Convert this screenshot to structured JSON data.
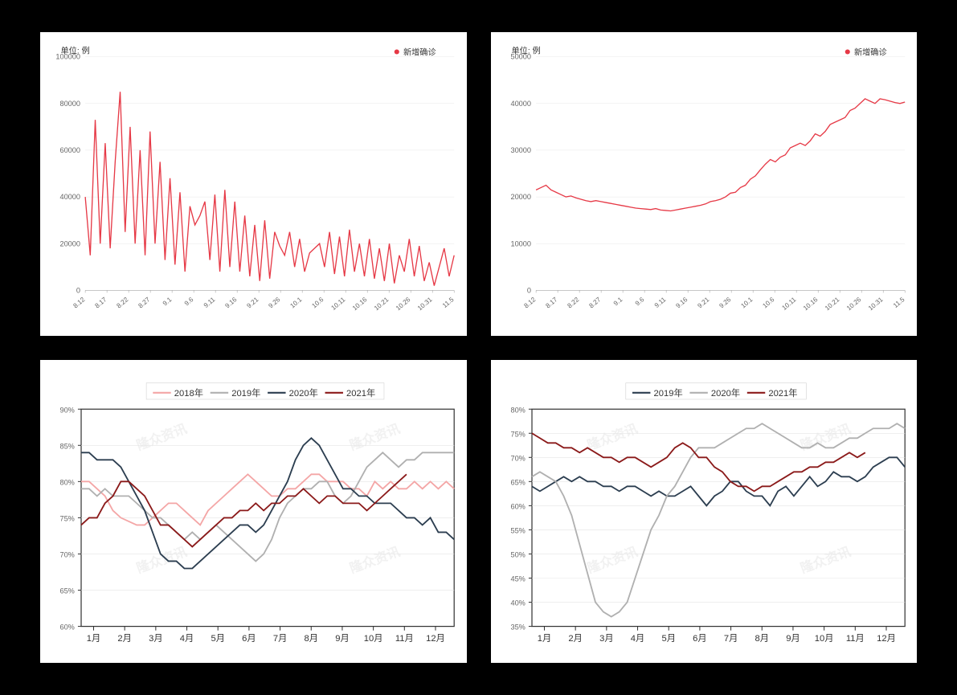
{
  "chart1": {
    "type": "line",
    "unit_label": "单位: 例",
    "legend": "新增确诊",
    "line_color": "#e63946",
    "background_color": "#ffffff",
    "grid_color": "#e8e8e8",
    "ylim": [
      0,
      100000
    ],
    "ytick_step": 20000,
    "x_labels": [
      "8.12",
      "8.17",
      "8.22",
      "8.27",
      "9.1",
      "9.6",
      "9.11",
      "9.16",
      "9.21",
      "9.26",
      "10.1",
      "10.6",
      "10.11",
      "10.16",
      "10.21",
      "10.26",
      "10.31",
      "11.5"
    ],
    "values": [
      40000,
      15000,
      73000,
      20000,
      63000,
      18000,
      55000,
      85000,
      25000,
      70000,
      20000,
      60000,
      15000,
      68000,
      20000,
      55000,
      13000,
      48000,
      11000,
      42000,
      8000,
      36000,
      28000,
      32000,
      38000,
      13000,
      41000,
      8000,
      43000,
      10000,
      38000,
      8000,
      32000,
      6000,
      28000,
      4000,
      30000,
      5000,
      25000,
      19000,
      15000,
      25000,
      10000,
      22000,
      8000,
      16000,
      18000,
      20000,
      10000,
      25000,
      7000,
      23000,
      6000,
      26000,
      8000,
      20000,
      6000,
      22000,
      5000,
      18000,
      4000,
      20000,
      3000,
      15000,
      8000,
      22000,
      6000,
      19000,
      4000,
      12000,
      2000,
      10000,
      18000,
      6000,
      15000
    ]
  },
  "chart2": {
    "type": "line",
    "unit_label": "单位: 例",
    "legend": "新增确诊",
    "line_color": "#e63946",
    "background_color": "#ffffff",
    "grid_color": "#e8e8e8",
    "ylim": [
      0,
      50000
    ],
    "ytick_step": 10000,
    "x_labels": [
      "8.12",
      "8.17",
      "8.22",
      "8.27",
      "9.1",
      "9.6",
      "9.11",
      "9.16",
      "9.21",
      "9.26",
      "10.1",
      "10.6",
      "10.11",
      "10.16",
      "10.21",
      "10.26",
      "10.31",
      "11.5"
    ],
    "values": [
      21500,
      22000,
      22500,
      21500,
      21000,
      20500,
      20000,
      20200,
      19800,
      19500,
      19200,
      19000,
      19200,
      19000,
      18800,
      18600,
      18400,
      18200,
      18000,
      17800,
      17600,
      17500,
      17400,
      17300,
      17500,
      17200,
      17100,
      17000,
      17200,
      17400,
      17600,
      17800,
      18000,
      18200,
      18500,
      19000,
      19200,
      19500,
      20000,
      20800,
      21000,
      22000,
      22500,
      23800,
      24500,
      25800,
      27000,
      28000,
      27500,
      28500,
      29000,
      30500,
      31000,
      31500,
      31000,
      32000,
      33500,
      33000,
      34000,
      35500,
      36000,
      36500,
      37000,
      38500,
      39000,
      40000,
      41000,
      40500,
      40000,
      41000,
      40800,
      40500,
      40200,
      40000,
      40300
    ]
  },
  "chart3": {
    "type": "line",
    "background_color": "#ffffff",
    "border_color": "#333333",
    "grid_color": "#e5e5e5",
    "ylim": [
      60,
      90
    ],
    "ytick_step": 5,
    "y_suffix": "%",
    "x_labels": [
      "1月",
      "2月",
      "3月",
      "4月",
      "5月",
      "6月",
      "7月",
      "8月",
      "9月",
      "10月",
      "11月",
      "12月"
    ],
    "watermark": "隆众资讯",
    "series": [
      {
        "name": "2018年",
        "color": "#f4a6a6",
        "values": [
          80,
          80,
          79,
          78,
          76,
          75,
          74.5,
          74,
          74,
          75,
          76,
          77,
          77,
          76,
          75,
          74,
          76,
          77,
          78,
          79,
          80,
          81,
          80,
          79,
          78,
          78,
          79,
          79,
          80,
          81,
          81,
          80,
          80,
          80,
          79,
          79,
          78,
          80,
          79,
          80,
          79,
          79,
          80,
          79,
          80,
          79,
          80,
          79
        ]
      },
      {
        "name": "2019年",
        "color": "#b0b0b0",
        "values": [
          79,
          79,
          78,
          79,
          78,
          78,
          78,
          77,
          76,
          75,
          75,
          74,
          73,
          72,
          73,
          72,
          73,
          74,
          73,
          72,
          71,
          70,
          69,
          70,
          72,
          75,
          77,
          78,
          79,
          79,
          80,
          80,
          78,
          77,
          78,
          80,
          82,
          83,
          84,
          83,
          82,
          83,
          83,
          84,
          84,
          84,
          84,
          84
        ]
      },
      {
        "name": "2020年",
        "color": "#2c3e50",
        "values": [
          84,
          84,
          83,
          83,
          83,
          82,
          80,
          78,
          76,
          73,
          70,
          69,
          69,
          68,
          68,
          69,
          70,
          71,
          72,
          73,
          74,
          74,
          73,
          74,
          76,
          78,
          80,
          83,
          85,
          86,
          85,
          83,
          81,
          79,
          79,
          78,
          78,
          77,
          77,
          77,
          76,
          75,
          75,
          74,
          75,
          73,
          73,
          72
        ]
      },
      {
        "name": "2021年",
        "color": "#8b1a1a",
        "values": [
          74,
          75,
          75,
          77,
          78,
          80,
          80,
          79,
          78,
          76,
          74,
          74,
          73,
          72,
          71,
          72,
          73,
          74,
          75,
          75,
          76,
          76,
          77,
          76,
          77,
          77,
          78,
          78,
          79,
          78,
          77,
          78,
          78,
          77,
          77,
          77,
          76,
          77,
          78,
          79,
          80,
          81
        ]
      }
    ]
  },
  "chart4": {
    "type": "line",
    "background_color": "#ffffff",
    "border_color": "#333333",
    "grid_color": "#e5e5e5",
    "ylim": [
      35,
      80
    ],
    "ytick_step": 5,
    "y_suffix": "%",
    "x_labels": [
      "1月",
      "2月",
      "3月",
      "4月",
      "5月",
      "6月",
      "7月",
      "8月",
      "9月",
      "10月",
      "11月",
      "12月"
    ],
    "watermark": "隆众资讯",
    "series": [
      {
        "name": "2019年",
        "color": "#2c3e50",
        "values": [
          64,
          63,
          64,
          65,
          66,
          65,
          66,
          65,
          65,
          64,
          64,
          63,
          64,
          64,
          63,
          62,
          63,
          62,
          62,
          63,
          64,
          62,
          60,
          62,
          63,
          65,
          65,
          63,
          62,
          62,
          60,
          63,
          64,
          62,
          64,
          66,
          64,
          65,
          67,
          66,
          66,
          65,
          66,
          68,
          69,
          70,
          70,
          68
        ]
      },
      {
        "name": "2020年",
        "color": "#b0b0b0",
        "values": [
          66,
          67,
          66,
          65,
          62,
          58,
          52,
          46,
          40,
          38,
          37,
          38,
          40,
          45,
          50,
          55,
          58,
          62,
          64,
          67,
          70,
          72,
          72,
          72,
          73,
          74,
          75,
          76,
          76,
          77,
          76,
          75,
          74,
          73,
          72,
          72,
          73,
          72,
          72,
          73,
          74,
          74,
          75,
          76,
          76,
          76,
          77,
          76
        ]
      },
      {
        "name": "2021年",
        "color": "#8b1a1a",
        "values": [
          75,
          74,
          73,
          73,
          72,
          72,
          71,
          72,
          71,
          70,
          70,
          69,
          70,
          70,
          69,
          68,
          69,
          70,
          72,
          73,
          72,
          70,
          70,
          68,
          67,
          65,
          64,
          64,
          63,
          64,
          64,
          65,
          66,
          67,
          67,
          68,
          68,
          69,
          69,
          70,
          71,
          70,
          71
        ]
      }
    ]
  }
}
